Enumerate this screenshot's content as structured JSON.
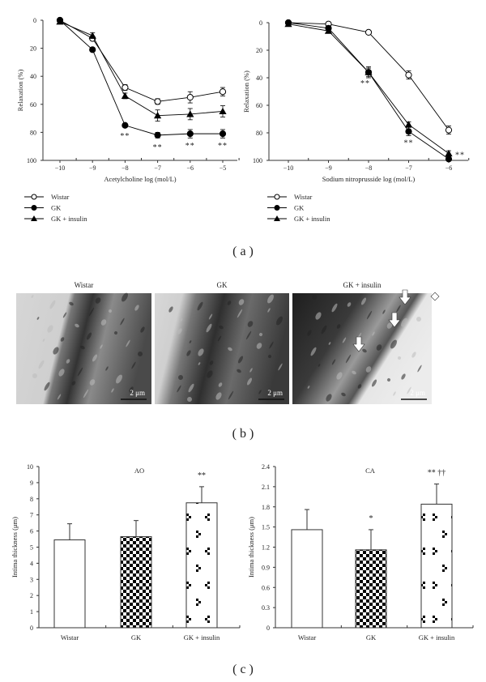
{
  "panel_labels": {
    "a": "( a )",
    "b": "( b )",
    "c": "( c )"
  },
  "legend": [
    {
      "name": "Wistar",
      "marker": "open-circle"
    },
    {
      "name": "GK",
      "marker": "filled-circle"
    },
    {
      "name": "GK + insulin",
      "marker": "filled-triangle"
    }
  ],
  "micrographs": [
    {
      "title": "Wistar",
      "scale": "2 μm"
    },
    {
      "title": "GK",
      "scale": "2 μm"
    },
    {
      "title": "GK + insulin",
      "scale": "2 μm",
      "annotation": "white arrows"
    }
  ],
  "chart_data": [
    {
      "type": "line",
      "xlabel": "Acetylcholine log (mol/L)",
      "ylabel": "Relaxation (%)",
      "x": [
        -10,
        -9,
        -8,
        -7,
        -6,
        -5
      ],
      "xticks": [
        "−10",
        "−9",
        "−8",
        "−7",
        "−6",
        "−5"
      ],
      "yticks": [
        "0",
        "20",
        "40",
        "60",
        "80",
        "100"
      ],
      "ylim": [
        0,
        100
      ],
      "y_inverted": true,
      "series": [
        {
          "name": "Wistar",
          "values": [
            0,
            13,
            48,
            58,
            55,
            51
          ],
          "err": [
            0,
            1,
            2,
            2,
            4,
            3
          ]
        },
        {
          "name": "GK",
          "values": [
            0,
            21,
            75,
            82,
            81,
            81
          ],
          "err": [
            0,
            1,
            1,
            2,
            3,
            3
          ]
        },
        {
          "name": "GK + insulin",
          "values": [
            1,
            11,
            54,
            68,
            67,
            65
          ],
          "err": [
            0,
            2,
            2,
            4,
            4,
            4
          ]
        }
      ],
      "annotations": [
        {
          "x": -8,
          "text": "**"
        },
        {
          "x": -7,
          "text": "**"
        },
        {
          "x": -6,
          "text": "**"
        },
        {
          "x": -5,
          "text": "**"
        }
      ],
      "legend_position": "bottom-left"
    },
    {
      "type": "line",
      "xlabel": "Sodium nitroprusside log (mol/L)",
      "ylabel": "Relaxation (%)",
      "x": [
        -10,
        -9,
        -8,
        -7,
        -6
      ],
      "xticks": [
        "−10",
        "−9",
        "−8",
        "−7",
        "−6"
      ],
      "yticks": [
        "0",
        "20",
        "40",
        "60",
        "80",
        "100"
      ],
      "ylim": [
        0,
        100
      ],
      "y_inverted": true,
      "series": [
        {
          "name": "Wistar",
          "values": [
            0,
            1,
            7,
            38,
            78
          ],
          "err": [
            0,
            1,
            1,
            3,
            3
          ]
        },
        {
          "name": "GK",
          "values": [
            0,
            4,
            36,
            79,
            99
          ],
          "err": [
            0,
            1,
            4,
            3,
            1
          ]
        },
        {
          "name": "GK + insulin",
          "values": [
            1,
            6,
            36,
            74,
            95
          ],
          "err": [
            0,
            1,
            3,
            2,
            2
          ]
        }
      ],
      "annotations": [
        {
          "x": -8,
          "text": "**"
        },
        {
          "x": -7,
          "text": "**"
        },
        {
          "x": -6,
          "text": "**"
        }
      ],
      "legend_position": "bottom-left"
    },
    {
      "type": "bar",
      "title": "AO",
      "ylabel": "Intima thickness (μm)",
      "categories": [
        "Wistar",
        "GK",
        "GK + insulin"
      ],
      "values": [
        5.45,
        5.65,
        7.75
      ],
      "err": [
        1.0,
        1.0,
        1.0
      ],
      "sig": [
        "",
        "",
        "**"
      ],
      "yticks": [
        "0",
        "1",
        "2",
        "3",
        "4",
        "5",
        "6",
        "7",
        "8",
        "9",
        "10"
      ],
      "ylim": [
        0,
        10
      ]
    },
    {
      "type": "bar",
      "title": "CA",
      "ylabel": "Intima thickness (μm)",
      "categories": [
        "Wistar",
        "GK",
        "GK + insulin"
      ],
      "values": [
        1.46,
        1.16,
        1.84
      ],
      "err": [
        0.3,
        0.3,
        0.3
      ],
      "sig": [
        "",
        "*",
        "** ††"
      ],
      "yticks": [
        "0",
        "0.3",
        "0.6",
        "0.9",
        "1.2",
        "1.5",
        "1.8",
        "2.1",
        "2.4"
      ],
      "ylim": [
        0,
        2.4
      ]
    }
  ]
}
